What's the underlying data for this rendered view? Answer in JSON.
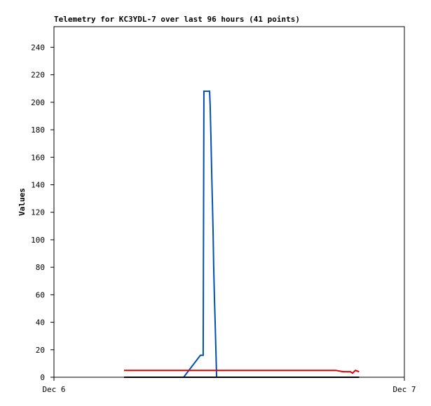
{
  "chart_data": {
    "type": "line",
    "title": "Telemetry for KC3YDL-7 over last 96 hours (41 points)",
    "y_label": "Values",
    "xlim": [
      0,
      24
    ],
    "xticks": [
      {
        "value": 0,
        "label": "Dec 6"
      },
      {
        "value": 24,
        "label": "Dec 7"
      }
    ],
    "ylim": [
      0,
      255
    ],
    "yticks": [
      0,
      20,
      40,
      60,
      80,
      100,
      120,
      140,
      160,
      180,
      200,
      220,
      240
    ],
    "series": [
      {
        "color": "#0050b4",
        "x": [
          8.88,
          10.03,
          10.22,
          10.27,
          10.66,
          10.7,
          10.75,
          10.8,
          10.85,
          10.9,
          10.94,
          10.99,
          11.04,
          11.09,
          11.14
        ],
        "values": [
          0,
          16,
          16,
          208,
          208,
          197,
          175,
          150,
          128,
          105,
          80,
          58,
          40,
          20,
          0
        ]
      },
      {
        "color": "#e00000",
        "x": [
          4.8,
          19.3,
          19.8,
          20.3,
          20.45,
          20.65,
          20.9
        ],
        "values": [
          5,
          5,
          4,
          4,
          3,
          5,
          4
        ]
      },
      {
        "color": "#000000",
        "x": [
          4.8,
          20.9
        ],
        "values": [
          0,
          0
        ]
      }
    ]
  }
}
